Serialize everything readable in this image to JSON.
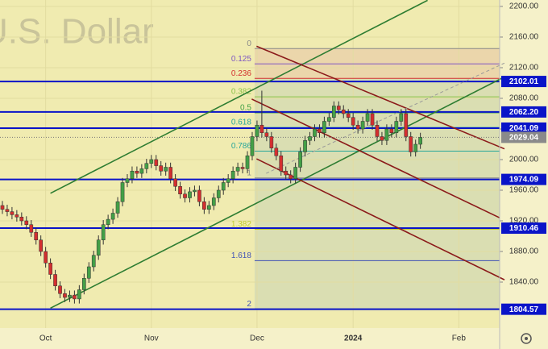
{
  "chart_data": {
    "type": "candlestick",
    "watermark": "U.S. Dollar",
    "categories": [
      null,
      null,
      null,
      null,
      null,
      null,
      null,
      null,
      null,
      "Oct",
      null,
      null,
      null,
      null,
      null,
      null,
      null,
      null,
      null,
      null,
      null,
      null,
      null,
      null,
      null,
      null,
      null,
      null,
      null,
      null,
      null,
      "Nov",
      null,
      null,
      null,
      null,
      null,
      null,
      null,
      null,
      null,
      null,
      null,
      null,
      null,
      null,
      null,
      null,
      null,
      null,
      null,
      null,
      null,
      "Dec",
      null,
      null,
      null,
      null,
      null,
      null,
      null,
      null,
      null,
      null,
      null,
      null,
      null,
      null,
      null,
      null,
      null,
      null,
      null,
      "2024",
      null,
      null,
      null,
      null,
      null,
      null,
      null,
      null,
      null,
      null,
      null,
      null,
      null,
      null,
      null,
      null,
      null,
      null,
      null,
      null,
      null,
      "Feb",
      null,
      null,
      null,
      null,
      null,
      null
    ],
    "open": [
      1940,
      1935,
      1932,
      1928,
      1925,
      1920,
      1915,
      1905,
      1895,
      1880,
      1865,
      1850,
      1835,
      1825,
      1820,
      1823,
      1818,
      1830,
      1845,
      1860,
      1875,
      1895,
      1915,
      1922,
      1930,
      1945,
      1970,
      1975,
      1985,
      1982,
      1988,
      1995,
      2000,
      1992,
      1985,
      1990,
      1975,
      1965,
      1955,
      1950,
      1958,
      1960,
      1945,
      1935,
      1940,
      1950,
      1960,
      1970,
      1975,
      1985,
      1990,
      1988,
      2005,
      2030,
      2045,
      2035,
      2030,
      2015,
      2005,
      1985,
      1980,
      1975,
      1990,
      2010,
      2025,
      2030,
      2040,
      2035,
      2050,
      2055,
      2070,
      2065,
      2060,
      2055,
      2045,
      2040,
      2050,
      2060,
      2045,
      2030,
      2025,
      2040,
      2035,
      2050,
      2060,
      2030,
      2010,
      2020,
      null,
      null,
      null,
      null,
      null,
      null,
      null,
      null,
      null,
      null,
      null,
      null,
      null,
      null
    ],
    "high": [
      1946,
      1941,
      1938,
      1934,
      1931,
      1926,
      1921,
      1911,
      1901,
      1886,
      1871,
      1856,
      1841,
      1831,
      1829,
      1829,
      1836,
      1851,
      1866,
      1881,
      1901,
      1921,
      1928,
      1936,
      1951,
      1976,
      1981,
      1991,
      1991,
      1994,
      2001,
      2006,
      2006,
      1998,
      1996,
      1996,
      1981,
      1971,
      1961,
      1964,
      1966,
      1966,
      1951,
      1946,
      1956,
      1966,
      1976,
      1981,
      1991,
      1996,
      1996,
      2011,
      2036,
      2051,
      2090,
      2041,
      2036,
      2021,
      2011,
      1991,
      1986,
      1996,
      2016,
      2031,
      2036,
      2046,
      2046,
      2056,
      2061,
      2076,
      2076,
      2071,
      2066,
      2061,
      2051,
      2056,
      2066,
      2066,
      2051,
      2036,
      2046,
      2046,
      2056,
      2066,
      2066,
      2036,
      2026,
      2035,
      null,
      null,
      null,
      null,
      null,
      null,
      null,
      null,
      null,
      null,
      null,
      null,
      null,
      null
    ],
    "low": [
      1929,
      1926,
      1922,
      1919,
      1914,
      1909,
      1899,
      1889,
      1874,
      1859,
      1844,
      1829,
      1819,
      1814,
      1814,
      1812,
      1812,
      1824,
      1839,
      1854,
      1869,
      1889,
      1909,
      1916,
      1924,
      1939,
      1964,
      1969,
      1976,
      1976,
      1982,
      1989,
      1986,
      1979,
      1979,
      1969,
      1959,
      1949,
      1944,
      1944,
      1952,
      1939,
      1929,
      1929,
      1934,
      1944,
      1954,
      1964,
      1969,
      1979,
      1982,
      1982,
      1999,
      2024,
      2029,
      2024,
      2009,
      1999,
      1979,
      1974,
      1969,
      1969,
      1984,
      2004,
      2019,
      2024,
      2029,
      2029,
      2044,
      2049,
      2059,
      2054,
      2049,
      2039,
      2034,
      2034,
      2044,
      2039,
      2024,
      2019,
      2019,
      2029,
      2029,
      2044,
      2024,
      2004,
      2004,
      2014,
      null,
      null,
      null,
      null,
      null,
      null,
      null,
      null,
      null,
      null,
      null,
      null,
      null,
      null
    ],
    "close": [
      1935,
      1932,
      1928,
      1925,
      1920,
      1915,
      1905,
      1895,
      1880,
      1865,
      1850,
      1835,
      1825,
      1820,
      1823,
      1818,
      1830,
      1845,
      1860,
      1875,
      1895,
      1915,
      1922,
      1930,
      1945,
      1970,
      1975,
      1985,
      1982,
      1988,
      1995,
      2000,
      1992,
      1985,
      1990,
      1975,
      1965,
      1955,
      1950,
      1958,
      1960,
      1945,
      1935,
      1940,
      1950,
      1960,
      1970,
      1975,
      1985,
      1990,
      1988,
      2005,
      2030,
      2045,
      2035,
      2030,
      2015,
      2005,
      1985,
      1980,
      1975,
      1990,
      2010,
      2025,
      2030,
      2040,
      2035,
      2050,
      2055,
      2070,
      2065,
      2060,
      2055,
      2045,
      2040,
      2050,
      2060,
      2045,
      2030,
      2025,
      2040,
      2035,
      2050,
      2060,
      2030,
      2010,
      2020,
      2029,
      null,
      null,
      null,
      null,
      null,
      null,
      null,
      null,
      null,
      null,
      null,
      null,
      null,
      null
    ],
    "up_color": "#43a047",
    "down_color": "#d32f2f",
    "ylim": [
      1780,
      2208.4
    ],
    "yticks": [
      {
        "value": 2200,
        "label": "2200.00"
      },
      {
        "value": 2160,
        "label": "2160.00"
      },
      {
        "value": 2120,
        "label": "2120.00"
      },
      {
        "value": 2080,
        "label": "2080.00"
      },
      {
        "value": 2040,
        "label": "2040.00"
      },
      {
        "value": 2000,
        "label": "2000.00"
      },
      {
        "value": 1960,
        "label": "1960.00"
      },
      {
        "value": 1920,
        "label": "1920.00"
      },
      {
        "value": 1880,
        "label": "1880.00"
      },
      {
        "value": 1840,
        "label": "1840.00"
      }
    ],
    "grid": true,
    "levels": [
      2102.01,
      {
        "value": 2062.2,
        "label": "2062.20"
      },
      2041.09,
      1974.09,
      1910.46,
      1804.57
    ],
    "level_color": "#0a14c8",
    "last_price": 2029.04,
    "fib_levels": [
      {
        "ratio": 0,
        "price": 2145,
        "color": "#888888"
      },
      {
        "ratio": 0.125,
        "price": 2125,
        "color": "#7e57c2"
      },
      {
        "ratio": 0.236,
        "price": 2106,
        "color": "#d32f2f"
      },
      {
        "ratio": 0.382,
        "price": 2082,
        "color": "#8bc34a"
      },
      {
        "ratio": 0.5,
        "price": 2061,
        "color": "#43a047"
      },
      {
        "ratio": 0.618,
        "price": 2042,
        "color": "#26a69a"
      },
      {
        "ratio": 0.786,
        "price": 2011,
        "color": "#26a69a"
      },
      {
        "ratio": 1,
        "price": 1976,
        "color": "#888888"
      },
      {
        "ratio": 1.382,
        "price": 1909,
        "color": "#c0ca33"
      },
      {
        "ratio": 1.618,
        "price": 1868,
        "color": "#3f51b5"
      },
      {
        "ratio": 2,
        "price": 1805,
        "color": "#3f51b5"
      }
    ],
    "trend_lines": [
      {
        "color": "#2e7d32",
        "x": [
          10,
          104.5
        ],
        "y": [
          1806,
          2108
        ],
        "dash": false
      },
      {
        "color": "#2e7d32",
        "x": [
          10,
          88.5
        ],
        "y": [
          1956,
          2208
        ],
        "dash": false
      },
      {
        "color": "#8b1a1a",
        "x": [
          52.9,
          104.5
        ],
        "y": [
          2148,
          2014
        ],
        "dash": false
      },
      {
        "color": "#8b1a1a",
        "x": [
          51.9,
          103.5
        ],
        "y": [
          2079,
          1924
        ],
        "dash": false
      },
      {
        "color": "#8b1a1a",
        "x": [
          52.9,
          104.5
        ],
        "y": [
          2001,
          1843
        ],
        "dash": false
      },
      {
        "color": "#999999",
        "x": [
          54.9,
          104.5
        ],
        "y": [
          1982,
          2126
        ],
        "dash": true
      }
    ]
  }
}
